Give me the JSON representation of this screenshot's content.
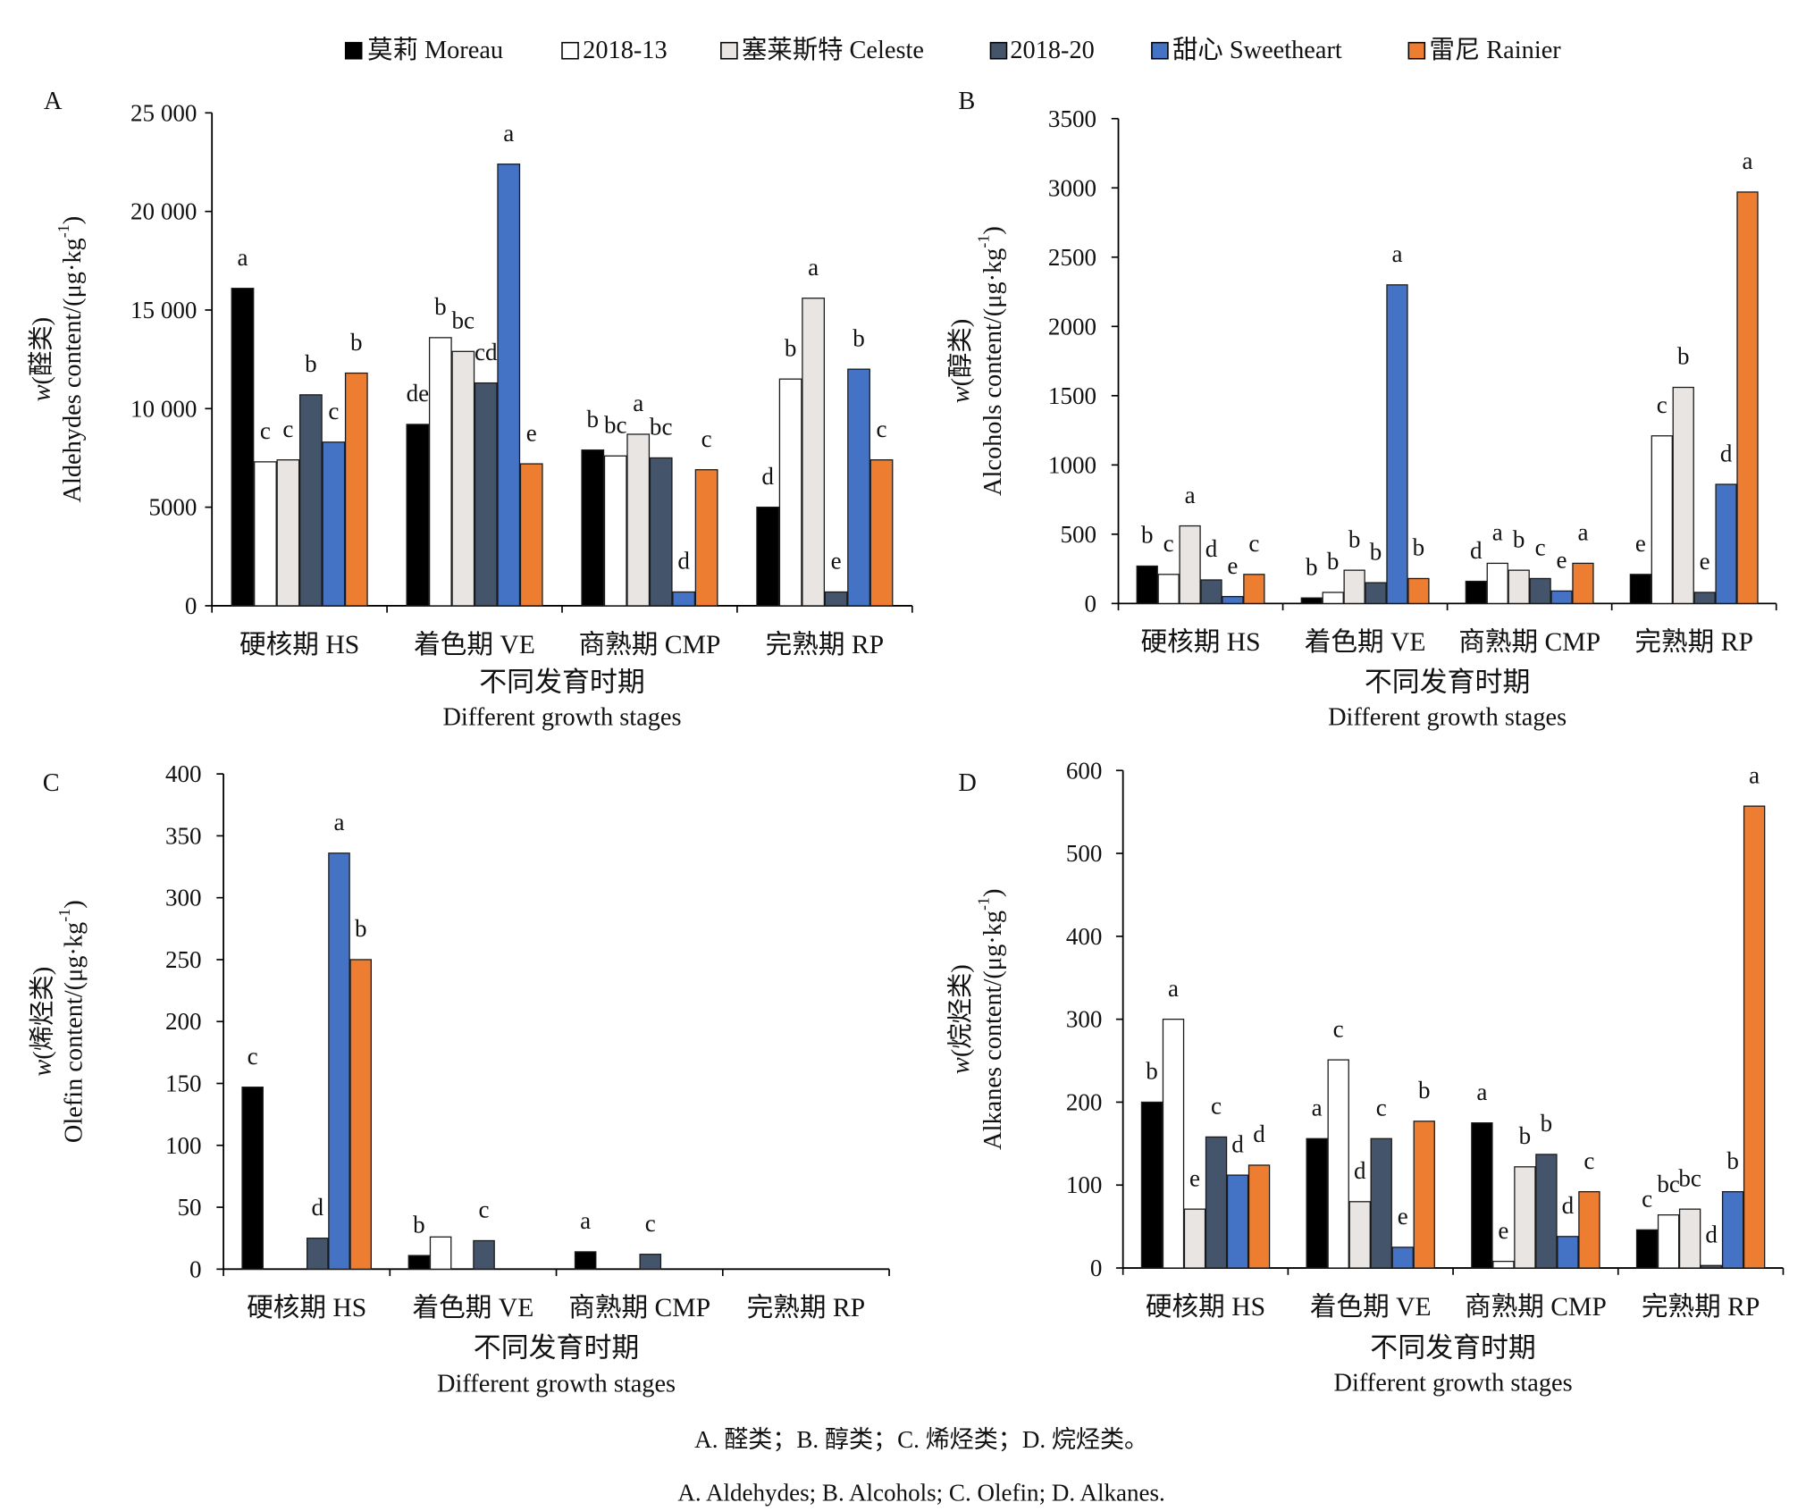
{
  "legend": [
    {
      "label": "莫莉 Moreau",
      "color": "#000000"
    },
    {
      "label": "2018-13",
      "color": "#ffffff"
    },
    {
      "label": "塞莱斯特 Celeste",
      "color": "#e8e5e2"
    },
    {
      "label": "2018-20",
      "color": "#44546a"
    },
    {
      "label": "甜心 Sweetheart",
      "color": "#4472c4"
    },
    {
      "label": "雷尼 Rainier",
      "color": "#ed7d31"
    }
  ],
  "caption": {
    "zh": "A. 醛类；B. 醇类；C. 烯烃类；D. 烷烃类。",
    "en": "A. Aldehydes; B. Alcohols; C. Olefin; D. Alkanes."
  },
  "chart_data": [
    {
      "panel": "A",
      "type": "bar",
      "categories": [
        "硬核期 HS",
        "着色期 VE",
        "商熟期 CMP",
        "完熟期 RP"
      ],
      "xlabel_zh": "不同发育时期",
      "xlabel": "Different growth stages",
      "ylabel_zh": {
        "var": "w",
        "text": "(醛类)"
      },
      "ylabel": {
        "text": "Aldehydes content/(μg·kg",
        "sup": "-1",
        "close": ")"
      },
      "yticks": [
        "0",
        "5000",
        "10 000",
        "15 000",
        "20 000",
        "25 000"
      ],
      "ylim": [
        0,
        25000
      ],
      "series": [
        {
          "name": "莫莉 Moreau",
          "values": [
            16100,
            9200,
            7900,
            5000
          ],
          "letters": [
            "a",
            "de",
            "b",
            "d"
          ]
        },
        {
          "name": "2018-13",
          "values": [
            7300,
            13600,
            7600,
            11500
          ],
          "letters": [
            "c",
            "b",
            "bc",
            "b"
          ]
        },
        {
          "name": "塞莱斯特 Celeste",
          "values": [
            7400,
            12900,
            8700,
            15600
          ],
          "letters": [
            "c",
            "bc",
            "a",
            "a"
          ]
        },
        {
          "name": "2018-20",
          "values": [
            10700,
            11300,
            7500,
            700
          ],
          "letters": [
            "b",
            "cd",
            "bc",
            "e"
          ]
        },
        {
          "name": "甜心 Sweetheart",
          "values": [
            8300,
            22400,
            700,
            12000
          ],
          "letters": [
            "c",
            "a",
            "d",
            "b"
          ]
        },
        {
          "name": "雷尼 Rainier",
          "values": [
            11800,
            7200,
            6900,
            7400
          ],
          "letters": [
            "b",
            "e",
            "c",
            "c"
          ]
        }
      ]
    },
    {
      "panel": "B",
      "type": "bar",
      "categories": [
        "硬核期 HS",
        "着色期 VE",
        "商熟期 CMP",
        "完熟期 RP"
      ],
      "xlabel_zh": "不同发育时期",
      "xlabel": "Different growth stages",
      "ylabel_zh": {
        "var": "w",
        "text": "(醇类)"
      },
      "ylabel": {
        "text": "Alcohols content/(μg·kg",
        "sup": "-1",
        "close": ")"
      },
      "yticks": [
        "0",
        "500",
        "1000",
        "1500",
        "2000",
        "2500",
        "3000",
        "3500"
      ],
      "ylim": [
        0,
        3500
      ],
      "series": [
        {
          "name": "莫莉 Moreau",
          "values": [
            270,
            40,
            160,
            210
          ],
          "letters": [
            "b",
            "b",
            "d",
            "e"
          ]
        },
        {
          "name": "2018-13",
          "values": [
            210,
            80,
            290,
            1210
          ],
          "letters": [
            "c",
            "b",
            "a",
            "c"
          ]
        },
        {
          "name": "塞莱斯特 Celeste",
          "values": [
            560,
            240,
            240,
            1560
          ],
          "letters": [
            "a",
            "b",
            "b",
            "b"
          ]
        },
        {
          "name": "2018-20",
          "values": [
            170,
            150,
            180,
            80
          ],
          "letters": [
            "d",
            "b",
            "c",
            "e"
          ]
        },
        {
          "name": "甜心 Sweetheart",
          "values": [
            50,
            2300,
            90,
            860
          ],
          "letters": [
            "e",
            "a",
            "e",
            "d"
          ]
        },
        {
          "name": "雷尼 Rainier",
          "values": [
            210,
            180,
            290,
            2970
          ],
          "letters": [
            "c",
            "b",
            "a",
            "a"
          ]
        }
      ]
    },
    {
      "panel": "C",
      "type": "bar",
      "categories": [
        "硬核期 HS",
        "着色期 VE",
        "商熟期 CMP",
        "完熟期 RP"
      ],
      "xlabel_zh": "不同发育时期",
      "xlabel": "Different growth stages",
      "ylabel_zh": {
        "var": "w",
        "text": "(烯烃类)"
      },
      "ylabel": {
        "text": "Olefin content/(μg·kg",
        "sup": "-1",
        "close": ")"
      },
      "yticks": [
        "0",
        "50",
        "100",
        "150",
        "200",
        "250",
        "300",
        "350",
        "400"
      ],
      "ylim": [
        0,
        400
      ],
      "series": [
        {
          "name": "莫莉 Moreau",
          "values": [
            147,
            11,
            14,
            0
          ],
          "letters": [
            "c",
            "b",
            "a",
            null
          ]
        },
        {
          "name": "2018-13",
          "values": [
            0,
            26,
            0,
            0
          ],
          "letters": [
            null,
            null,
            null,
            null
          ]
        },
        {
          "name": "塞莱斯特 Celeste",
          "values": [
            0,
            0,
            0,
            0
          ],
          "letters": [
            null,
            null,
            null,
            null
          ]
        },
        {
          "name": "2018-20",
          "values": [
            25,
            23,
            12,
            0
          ],
          "letters": [
            "d",
            "c",
            "c",
            null
          ]
        },
        {
          "name": "甜心 Sweetheart",
          "values": [
            336,
            0,
            0,
            0
          ],
          "letters": [
            "a",
            null,
            null,
            null
          ]
        },
        {
          "name": "雷尼 Rainier",
          "values": [
            250,
            0,
            0,
            0
          ],
          "letters": [
            "b",
            null,
            null,
            null
          ]
        }
      ]
    },
    {
      "panel": "D",
      "type": "bar",
      "categories": [
        "硬核期 HS",
        "着色期 VE",
        "商熟期 CMP",
        "完熟期 RP"
      ],
      "xlabel_zh": "不同发育时期",
      "xlabel": "Different growth stages",
      "ylabel_zh": {
        "var": "w",
        "text": "(烷烃类)"
      },
      "ylabel": {
        "text": "Alkanes content/(μg·kg",
        "sup": "-1",
        "close": ")"
      },
      "yticks": [
        "0",
        "100",
        "200",
        "300",
        "400",
        "500",
        "600"
      ],
      "ylim": [
        0,
        600
      ],
      "series": [
        {
          "name": "莫莉 Moreau",
          "values": [
            200,
            156,
            175,
            46
          ],
          "letters": [
            "b",
            "a",
            "a",
            "c"
          ]
        },
        {
          "name": "2018-13",
          "values": [
            300,
            251,
            8,
            64
          ],
          "letters": [
            "a",
            "c",
            "e",
            "bc"
          ]
        },
        {
          "name": "塞莱斯特 Celeste",
          "values": [
            71,
            80,
            122,
            71
          ],
          "letters": [
            "e",
            "d",
            "b",
            "bc"
          ]
        },
        {
          "name": "2018-20",
          "values": [
            158,
            156,
            137,
            3
          ],
          "letters": [
            "c",
            "c",
            "b",
            "d"
          ]
        },
        {
          "name": "甜心 Sweetheart",
          "values": [
            112,
            25,
            38,
            92
          ],
          "letters": [
            "d",
            "e",
            "d",
            "b"
          ]
        },
        {
          "name": "雷尼 Rainier",
          "values": [
            124,
            177,
            92,
            557
          ],
          "letters": [
            "d",
            "b",
            "c",
            "a"
          ]
        }
      ]
    }
  ]
}
